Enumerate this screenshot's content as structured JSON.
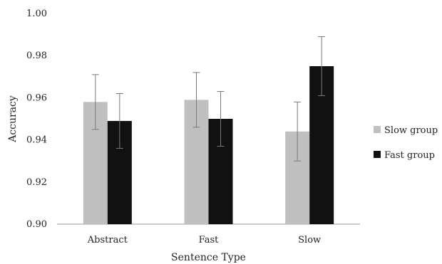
{
  "chart_data": {
    "type": "bar",
    "xlabel": "Sentence Type",
    "ylabel": "Accuracy",
    "categories": [
      "Abstract",
      "Fast",
      "Slow"
    ],
    "ylim": [
      0.9,
      1.0
    ],
    "yticks": [
      "0.90",
      "0.92",
      "0.94",
      "0.96",
      "0.98",
      "1.00"
    ],
    "grid": false,
    "legend_position": "right",
    "series": [
      {
        "name": "Slow group",
        "color": "#c0c0c0",
        "values": [
          0.958,
          0.959,
          0.944
        ],
        "error_low": [
          0.945,
          0.946,
          0.93
        ],
        "error_high": [
          0.971,
          0.972,
          0.958
        ]
      },
      {
        "name": "Fast group",
        "color": "#111111",
        "values": [
          0.949,
          0.95,
          0.975
        ],
        "error_low": [
          0.936,
          0.937,
          0.961
        ],
        "error_high": [
          0.962,
          0.963,
          0.989
        ]
      }
    ]
  }
}
